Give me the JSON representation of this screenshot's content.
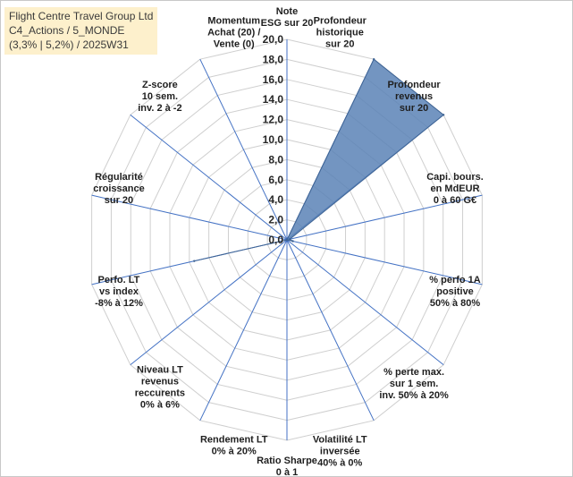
{
  "chart_data": {
    "type": "radar",
    "title_lines": [
      "Flight Centre Travel Group Ltd",
      "C4_Actions / 5_MONDE",
      "(3,3% | 5,2%) / 2025W31"
    ],
    "rlim": [
      0,
      20
    ],
    "ticks": [
      0,
      2,
      4,
      6,
      8,
      10,
      12,
      14,
      16,
      18,
      20
    ],
    "tick_labels": [
      "0,0",
      "2,0",
      "4,0",
      "6,0",
      "8,0",
      "10,0",
      "12,0",
      "14,0",
      "16,0",
      "18,0",
      "20,0"
    ],
    "grid": true,
    "axes": [
      {
        "label": [
          "Note",
          "ESG sur 20"
        ],
        "value": 0
      },
      {
        "label": [
          "Profondeur",
          "historique",
          "sur 20"
        ],
        "value": 20
      },
      {
        "label": [
          "Profondeur",
          "revenus",
          "sur 20"
        ],
        "value": 20
      },
      {
        "label": [
          "Capi. bours.",
          "en MdEUR",
          "0 à 60 G€"
        ],
        "value": 0.3
      },
      {
        "label": [
          "% perfo 1A",
          "positive",
          "50% à 80%"
        ],
        "value": 0.6
      },
      {
        "label": [
          "% perte max.",
          "sur 1 sem.",
          "inv. 50% à 20%"
        ],
        "value": 0
      },
      {
        "label": [
          "Volatilité LT",
          "inversée",
          "40% à 0%"
        ],
        "value": 0
      },
      {
        "label": [
          "Ratio Sharpe",
          "0 à 1"
        ],
        "value": 0
      },
      {
        "label": [
          "Rendement LT",
          "0% à 20%"
        ],
        "value": 0
      },
      {
        "label": [
          "Niveau LT",
          "revenus",
          "reccurents",
          "0% à 6%"
        ],
        "value": 0
      },
      {
        "label": [
          "Perfo. LT",
          "vs index",
          "-8% à 12%"
        ],
        "value": 9.5
      },
      {
        "label": [
          "Régularité",
          "croissance",
          "sur 20"
        ],
        "value": 0
      },
      {
        "label": [
          "Z-score",
          "10 sem.",
          "inv. 2 à -2"
        ],
        "value": 0
      },
      {
        "label": [
          "Momentum",
          "Achat (20) /",
          "Vente (0)"
        ],
        "value": 0
      }
    ],
    "series_color": "#5b82b6",
    "series_stroke": "#3f6494",
    "spoke_color": "#4472c4",
    "grid_color": "#cfcfcf"
  }
}
